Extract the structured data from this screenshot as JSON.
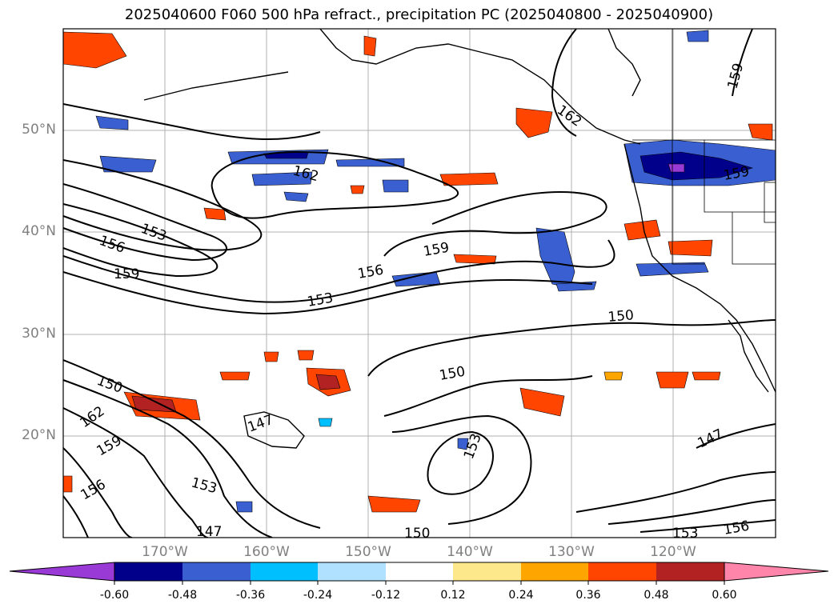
{
  "title": "2025040600 F060 500 hPa refract., precipitation PC (2025040800 - 2025040900)",
  "lat_labels": [
    "50°N",
    "40°N",
    "30°N",
    "20°N"
  ],
  "lon_labels": [
    "170°W",
    "160°W",
    "150°W",
    "140°W",
    "130°W",
    "120°W"
  ],
  "colorbar": {
    "ticks": [
      "-0.60",
      "-0.48",
      "-0.36",
      "-0.24",
      "-0.12",
      "0.12",
      "0.24",
      "0.36",
      "0.48",
      "0.60"
    ],
    "colors": [
      "#9a3ad6",
      "#00008b",
      "#3a5fd0",
      "#00bfff",
      "#b0e2ff",
      "#ffffff",
      "#fde98c",
      "#ffa500",
      "#ff4500",
      "#b22222",
      "#ff85aa"
    ]
  },
  "contour_labels": [
    {
      "text": "162"
    },
    {
      "text": "153"
    },
    {
      "text": "156"
    },
    {
      "text": "159"
    },
    {
      "text": "159"
    },
    {
      "text": "156"
    },
    {
      "text": "153"
    },
    {
      "text": "162"
    },
    {
      "text": "150"
    },
    {
      "text": "150"
    },
    {
      "text": "162"
    },
    {
      "text": "159"
    },
    {
      "text": "156"
    },
    {
      "text": "153"
    },
    {
      "text": "147"
    },
    {
      "text": "150"
    },
    {
      "text": "153"
    },
    {
      "text": "147"
    },
    {
      "text": "150"
    },
    {
      "text": "153"
    },
    {
      "text": "156"
    },
    {
      "text": "159"
    },
    {
      "text": "147"
    },
    {
      "text": "159"
    }
  ]
}
